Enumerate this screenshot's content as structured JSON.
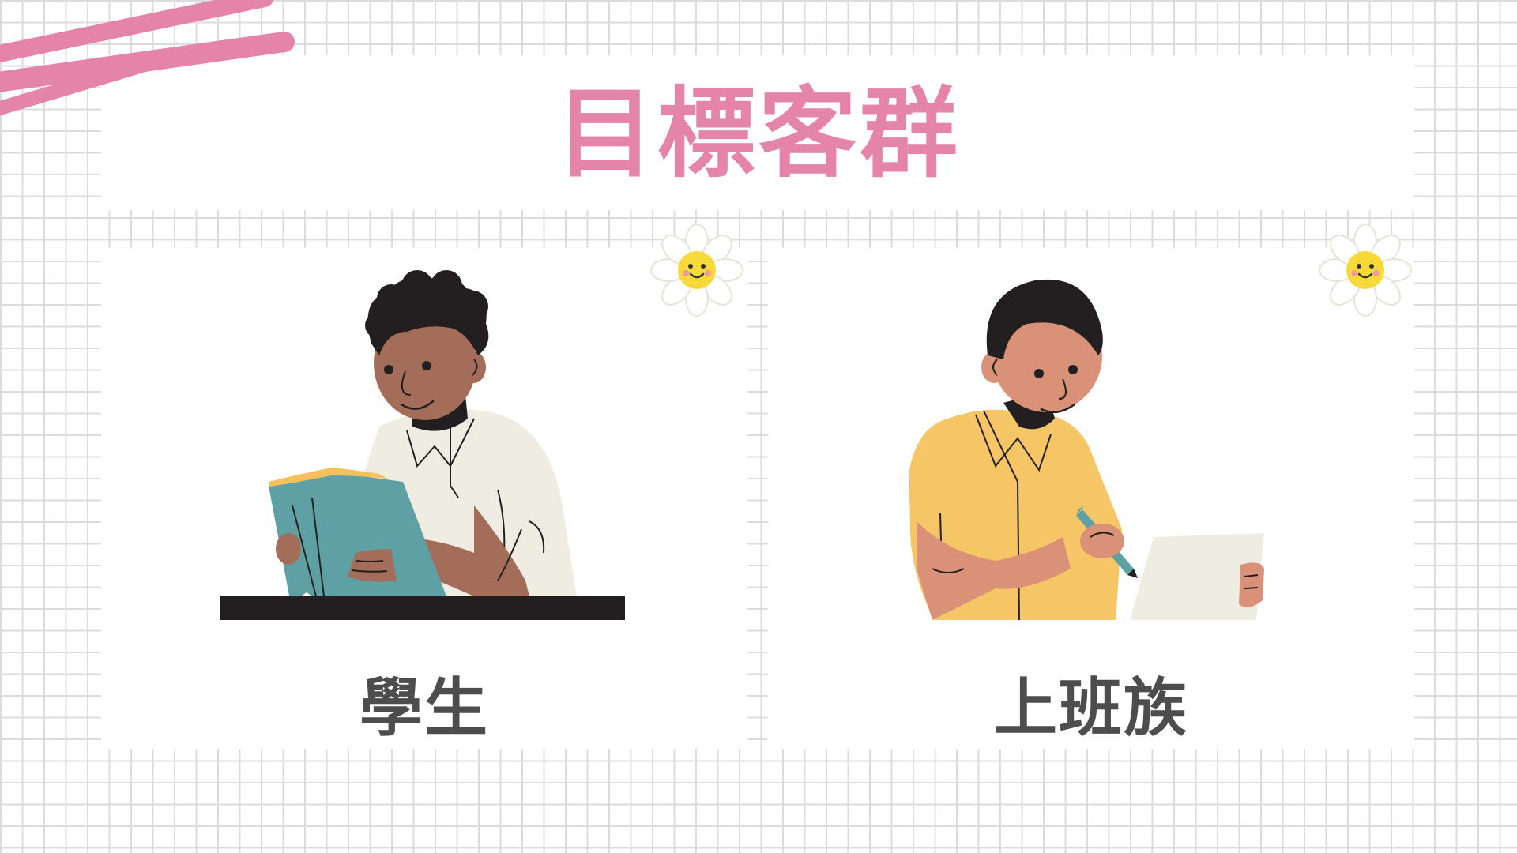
{
  "slide": {
    "title": "目標客群",
    "colors": {
      "title": "#e384a8",
      "caption": "#4d4d4d",
      "scribble": "#e384a8",
      "grid": "#dcdcdc"
    }
  },
  "audiences": [
    {
      "label": "學生",
      "illustration": "student-reading-book",
      "decoration": "smiling-daisy-icon"
    },
    {
      "label": "上班族",
      "illustration": "office-worker-writing",
      "decoration": "smiling-daisy-icon"
    }
  ]
}
